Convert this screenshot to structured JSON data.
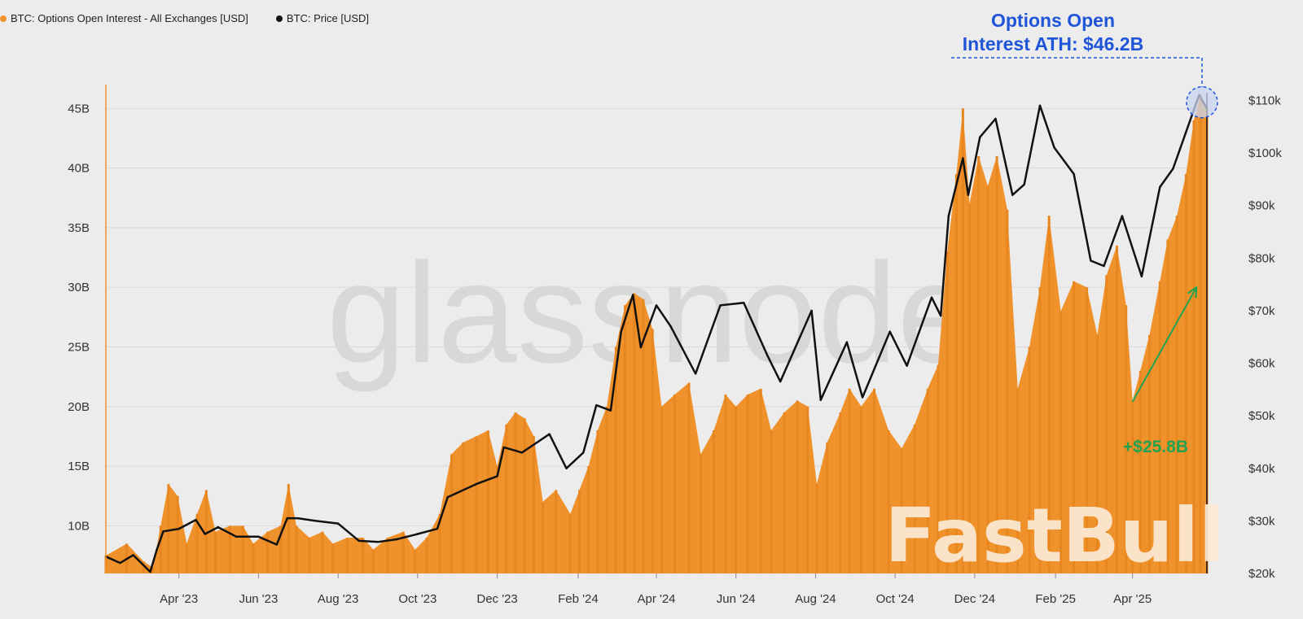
{
  "legend": [
    {
      "label": "BTC: Options Open Interest - All Exchanges [USD]",
      "color": "#f0922b"
    },
    {
      "label": "BTC: Price [USD]",
      "color": "#111111"
    }
  ],
  "watermark": "glassnode",
  "brand_watermark": "FastBull",
  "chart_data": {
    "type": "bar",
    "title": "",
    "x_axis": {
      "range": [
        "2023-02-04",
        "2025-05-28"
      ],
      "tick_labels": [
        "Apr '23",
        "Jun '23",
        "Aug '23",
        "Oct '23",
        "Dec '23",
        "Feb '24",
        "Apr '24",
        "Jun '24",
        "Aug '24",
        "Oct '24",
        "Dec '24",
        "Feb '25",
        "Apr '25"
      ],
      "tick_dates": [
        "2023-04-01",
        "2023-06-01",
        "2023-08-01",
        "2023-10-01",
        "2023-12-01",
        "2024-02-01",
        "2024-04-01",
        "2024-06-01",
        "2024-08-01",
        "2024-10-01",
        "2024-12-01",
        "2025-02-01",
        "2025-04-01"
      ]
    },
    "y_left": {
      "label": "",
      "unit": "B USD",
      "range": [
        6,
        47
      ],
      "ticks": [
        10,
        15,
        20,
        25,
        30,
        35,
        40,
        45
      ],
      "tick_labels": [
        "10B",
        "15B",
        "20B",
        "25B",
        "30B",
        "35B",
        "40B",
        "45B"
      ]
    },
    "y_right": {
      "label": "",
      "unit": "k USD",
      "range": [
        20,
        113
      ],
      "ticks": [
        20,
        30,
        40,
        50,
        60,
        70,
        80,
        90,
        100,
        110
      ],
      "tick_labels": [
        "$20k",
        "$30k",
        "$40k",
        "$50k",
        "$60k",
        "$70k",
        "$80k",
        "$90k",
        "$100k",
        "$110k"
      ]
    },
    "grid": true,
    "legend_position": "top-left",
    "series": [
      {
        "name": "BTC: Options Open Interest - All Exchanges [USD]",
        "type": "bar",
        "axis": "left",
        "color": "#f0922b",
        "points": [
          [
            "2023-02-04",
            7.5
          ],
          [
            "2023-02-20",
            8.5
          ],
          [
            "2023-03-05",
            7.0
          ],
          [
            "2023-03-12",
            6.5
          ],
          [
            "2023-03-18",
            10.0
          ],
          [
            "2023-03-24",
            13.5
          ],
          [
            "2023-03-31",
            12.5
          ],
          [
            "2023-04-07",
            8.5
          ],
          [
            "2023-04-15",
            11.0
          ],
          [
            "2023-04-22",
            13.0
          ],
          [
            "2023-04-29",
            9.5
          ],
          [
            "2023-05-10",
            10.0
          ],
          [
            "2023-05-20",
            10.0
          ],
          [
            "2023-05-28",
            8.5
          ],
          [
            "2023-06-08",
            9.5
          ],
          [
            "2023-06-18",
            10.0
          ],
          [
            "2023-06-24",
            13.5
          ],
          [
            "2023-06-30",
            10.0
          ],
          [
            "2023-07-10",
            9.0
          ],
          [
            "2023-07-20",
            9.5
          ],
          [
            "2023-07-28",
            8.5
          ],
          [
            "2023-08-08",
            9.0
          ],
          [
            "2023-08-20",
            9.0
          ],
          [
            "2023-08-28",
            8.0
          ],
          [
            "2023-09-08",
            9.0
          ],
          [
            "2023-09-20",
            9.5
          ],
          [
            "2023-09-29",
            8.0
          ],
          [
            "2023-10-08",
            9.0
          ],
          [
            "2023-10-18",
            11.0
          ],
          [
            "2023-10-27",
            16.0
          ],
          [
            "2023-11-05",
            17.0
          ],
          [
            "2023-11-15",
            17.5
          ],
          [
            "2023-11-24",
            18.0
          ],
          [
            "2023-12-01",
            15.0
          ],
          [
            "2023-12-08",
            18.5
          ],
          [
            "2023-12-15",
            19.5
          ],
          [
            "2023-12-22",
            19.0
          ],
          [
            "2023-12-29",
            17.5
          ],
          [
            "2024-01-05",
            12.0
          ],
          [
            "2024-01-15",
            13.0
          ],
          [
            "2024-01-26",
            11.0
          ],
          [
            "2024-02-02",
            13.0
          ],
          [
            "2024-02-09",
            15.0
          ],
          [
            "2024-02-16",
            18.0
          ],
          [
            "2024-02-23",
            20.0
          ],
          [
            "2024-03-01",
            25.0
          ],
          [
            "2024-03-08",
            28.5
          ],
          [
            "2024-03-15",
            29.5
          ],
          [
            "2024-03-22",
            29.0
          ],
          [
            "2024-03-29",
            26.5
          ],
          [
            "2024-04-05",
            20.0
          ],
          [
            "2024-04-15",
            21.0
          ],
          [
            "2024-04-26",
            22.0
          ],
          [
            "2024-05-05",
            16.0
          ],
          [
            "2024-05-15",
            18.0
          ],
          [
            "2024-05-24",
            21.0
          ],
          [
            "2024-06-01",
            20.0
          ],
          [
            "2024-06-10",
            21.0
          ],
          [
            "2024-06-20",
            21.5
          ],
          [
            "2024-06-28",
            18.0
          ],
          [
            "2024-07-08",
            19.5
          ],
          [
            "2024-07-18",
            20.5
          ],
          [
            "2024-07-26",
            20.0
          ],
          [
            "2024-08-02",
            13.5
          ],
          [
            "2024-08-10",
            17.0
          ],
          [
            "2024-08-20",
            19.5
          ],
          [
            "2024-08-27",
            21.5
          ],
          [
            "2024-09-05",
            20.0
          ],
          [
            "2024-09-15",
            21.5
          ],
          [
            "2024-09-26",
            18.0
          ],
          [
            "2024-10-06",
            16.5
          ],
          [
            "2024-10-16",
            18.5
          ],
          [
            "2024-10-26",
            21.5
          ],
          [
            "2024-11-03",
            23.5
          ],
          [
            "2024-11-10",
            33.0
          ],
          [
            "2024-11-17",
            39.5
          ],
          [
            "2024-11-22",
            45.0
          ],
          [
            "2024-11-27",
            37.0
          ],
          [
            "2024-12-04",
            41.0
          ],
          [
            "2024-12-11",
            38.5
          ],
          [
            "2024-12-18",
            41.0
          ],
          [
            "2024-12-26",
            36.5
          ],
          [
            "2025-01-03",
            21.5
          ],
          [
            "2025-01-12",
            25.0
          ],
          [
            "2025-01-20",
            30.0
          ],
          [
            "2025-01-27",
            36.0
          ],
          [
            "2025-02-05",
            28.0
          ],
          [
            "2025-02-15",
            30.5
          ],
          [
            "2025-02-25",
            30.0
          ],
          [
            "2025-03-05",
            26.0
          ],
          [
            "2025-03-12",
            31.0
          ],
          [
            "2025-03-20",
            33.5
          ],
          [
            "2025-03-27",
            28.5
          ],
          [
            "2025-04-01",
            20.5
          ],
          [
            "2025-04-07",
            23.0
          ],
          [
            "2025-04-14",
            26.0
          ],
          [
            "2025-04-22",
            30.5
          ],
          [
            "2025-04-28",
            34.0
          ],
          [
            "2025-05-05",
            36.0
          ],
          [
            "2025-05-12",
            39.5
          ],
          [
            "2025-05-18",
            44.0
          ],
          [
            "2025-05-23",
            46.2
          ],
          [
            "2025-05-28",
            45.0
          ]
        ]
      },
      {
        "name": "BTC: Price [USD]",
        "type": "line",
        "axis": "right",
        "color": "#111111",
        "points": [
          [
            "2023-02-04",
            23.2
          ],
          [
            "2023-02-15",
            22.0
          ],
          [
            "2023-02-25",
            23.5
          ],
          [
            "2023-03-10",
            20.3
          ],
          [
            "2023-03-15",
            24.5
          ],
          [
            "2023-03-20",
            28.0
          ],
          [
            "2023-04-01",
            28.5
          ],
          [
            "2023-04-14",
            30.2
          ],
          [
            "2023-04-21",
            27.5
          ],
          [
            "2023-05-01",
            28.8
          ],
          [
            "2023-05-15",
            27.0
          ],
          [
            "2023-06-01",
            27.0
          ],
          [
            "2023-06-15",
            25.5
          ],
          [
            "2023-06-23",
            30.5
          ],
          [
            "2023-07-01",
            30.5
          ],
          [
            "2023-07-15",
            30.0
          ],
          [
            "2023-08-01",
            29.5
          ],
          [
            "2023-08-17",
            26.2
          ],
          [
            "2023-09-01",
            26.0
          ],
          [
            "2023-09-15",
            26.5
          ],
          [
            "2023-10-01",
            27.5
          ],
          [
            "2023-10-16",
            28.5
          ],
          [
            "2023-10-24",
            34.5
          ],
          [
            "2023-11-15",
            37.0
          ],
          [
            "2023-12-01",
            38.5
          ],
          [
            "2023-12-06",
            44.0
          ],
          [
            "2023-12-20",
            43.0
          ],
          [
            "2024-01-10",
            46.5
          ],
          [
            "2024-01-23",
            40.0
          ],
          [
            "2024-02-05",
            43.0
          ],
          [
            "2024-02-15",
            52.0
          ],
          [
            "2024-02-26",
            51.0
          ],
          [
            "2024-03-05",
            66.0
          ],
          [
            "2024-03-14",
            73.0
          ],
          [
            "2024-03-20",
            63.0
          ],
          [
            "2024-04-01",
            71.0
          ],
          [
            "2024-04-12",
            67.0
          ],
          [
            "2024-05-01",
            58.0
          ],
          [
            "2024-05-20",
            71.0
          ],
          [
            "2024-06-07",
            71.5
          ],
          [
            "2024-06-25",
            61.5
          ],
          [
            "2024-07-05",
            56.5
          ],
          [
            "2024-07-29",
            70.0
          ],
          [
            "2024-08-05",
            53.0
          ],
          [
            "2024-08-25",
            64.0
          ],
          [
            "2024-09-06",
            53.5
          ],
          [
            "2024-09-27",
            66.0
          ],
          [
            "2024-10-10",
            59.5
          ],
          [
            "2024-10-29",
            72.5
          ],
          [
            "2024-11-05",
            69.0
          ],
          [
            "2024-11-11",
            88.0
          ],
          [
            "2024-11-22",
            99.0
          ],
          [
            "2024-11-26",
            92.0
          ],
          [
            "2024-12-05",
            103.0
          ],
          [
            "2024-12-17",
            106.5
          ],
          [
            "2024-12-30",
            92.0
          ],
          [
            "2025-01-08",
            94.0
          ],
          [
            "2025-01-20",
            109.0
          ],
          [
            "2025-01-31",
            101.0
          ],
          [
            "2025-02-15",
            96.0
          ],
          [
            "2025-02-28",
            79.5
          ],
          [
            "2025-03-10",
            78.5
          ],
          [
            "2025-03-24",
            88.0
          ],
          [
            "2025-04-08",
            76.5
          ],
          [
            "2025-04-22",
            93.5
          ],
          [
            "2025-05-02",
            97.0
          ],
          [
            "2025-05-12",
            104.0
          ],
          [
            "2025-05-22",
            111.0
          ],
          [
            "2025-05-28",
            108.5
          ]
        ]
      }
    ],
    "annotations": [
      {
        "text": "Options Open Interest ATH: $46.2B",
        "lines": [
          "Options Open",
          "Interest ATH: $46.2B"
        ],
        "color": "#1f55d8",
        "date": "2025-05-23",
        "value": 46.2
      },
      {
        "text": "+$25.8B",
        "color": "#1fa351",
        "from": {
          "date": "2025-04-01",
          "value": 20.4
        },
        "to": {
          "date": "2025-05-20",
          "value": 30.0
        }
      }
    ]
  }
}
